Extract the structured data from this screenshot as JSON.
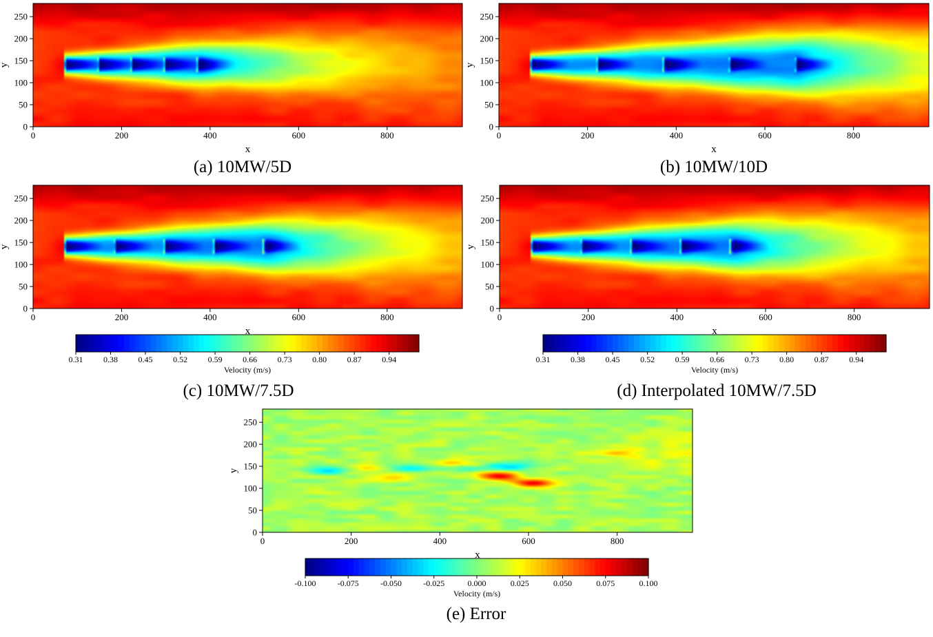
{
  "figure": {
    "captions": {
      "a": "(a) 10MW/5D",
      "b": "(b) 10MW/10D",
      "c": "(c) 10MW/7.5D",
      "d": "(d) Interpolated 10MW/7.5D",
      "e": "(e) Error"
    }
  },
  "colors": {
    "jet": [
      "#00007f",
      "#0000ff",
      "#007fff",
      "#00ffff",
      "#7fff7f",
      "#ffff00",
      "#ff7f00",
      "#ff0000",
      "#7f0000"
    ]
  },
  "chart_data": [
    {
      "id": "a",
      "type": "heatmap",
      "title": "(a) 10MW/5D",
      "xlabel": "x",
      "ylabel": "y",
      "xlim": [
        0,
        970
      ],
      "ylim": [
        0,
        280
      ],
      "xticks": [
        0,
        200,
        400,
        600,
        800
      ],
      "yticks": [
        0,
        50,
        100,
        150,
        200,
        250
      ],
      "turbine_x": [
        70,
        145,
        220,
        295,
        370
      ],
      "rotor_y": 141,
      "rotor_diameter": 30,
      "colorbar": null
    },
    {
      "id": "b",
      "type": "heatmap",
      "title": "(b) 10MW/10D",
      "xlabel": "x",
      "ylabel": "y",
      "xlim": [
        0,
        970
      ],
      "ylim": [
        0,
        280
      ],
      "xticks": [
        0,
        200,
        400,
        600,
        800
      ],
      "yticks": [
        0,
        50,
        100,
        150,
        200,
        250
      ],
      "turbine_x": [
        70,
        220,
        370,
        518,
        667
      ],
      "rotor_y": 141,
      "rotor_diameter": 30,
      "colorbar": null
    },
    {
      "id": "c",
      "type": "heatmap",
      "title": "(c) 10MW/7.5D",
      "xlabel": "x",
      "ylabel": "y",
      "xlim": [
        0,
        970
      ],
      "ylim": [
        0,
        280
      ],
      "xticks": [
        0,
        200,
        400,
        600,
        800
      ],
      "yticks": [
        0,
        50,
        100,
        150,
        200,
        250
      ],
      "turbine_x": [
        70,
        182,
        295,
        407,
        520
      ],
      "rotor_y": 141,
      "rotor_diameter": 30,
      "colorbar": {
        "label": "Velocity (m/s)",
        "range": [
          0.31,
          1.0
        ],
        "ticks": [
          "0.31",
          "0.38",
          "0.45",
          "0.52",
          "0.59",
          "0.66",
          "0.73",
          "0.80",
          "0.87",
          "0.94"
        ]
      }
    },
    {
      "id": "d",
      "type": "heatmap",
      "title": "(d) Interpolated 10MW/7.5D",
      "xlabel": "x",
      "ylabel": "y",
      "xlim": [
        0,
        970
      ],
      "ylim": [
        0,
        280
      ],
      "xticks": [
        0,
        200,
        400,
        600,
        800
      ],
      "yticks": [
        0,
        50,
        100,
        150,
        200,
        250
      ],
      "turbine_x": [
        70,
        182,
        295,
        407,
        520
      ],
      "rotor_y": 141,
      "rotor_diameter": 30,
      "colorbar": {
        "label": "Velocity (m/s)",
        "range": [
          0.31,
          1.0
        ],
        "ticks": [
          "0.31",
          "0.38",
          "0.45",
          "0.52",
          "0.59",
          "0.66",
          "0.73",
          "0.80",
          "0.87",
          "0.94"
        ]
      }
    },
    {
      "id": "e",
      "type": "heatmap",
      "title": "(e) Error",
      "xlabel": "x",
      "ylabel": "y",
      "xlim": [
        0,
        970
      ],
      "ylim": [
        0,
        280
      ],
      "xticks": [
        0,
        200,
        400,
        600,
        800
      ],
      "yticks": [
        0,
        50,
        100,
        150,
        200,
        250
      ],
      "error_features": [
        {
          "x": 145,
          "y": 140,
          "value": -0.035
        },
        {
          "x": 230,
          "y": 150,
          "value": 0.022
        },
        {
          "x": 330,
          "y": 145,
          "value": -0.03
        },
        {
          "x": 430,
          "y": 158,
          "value": 0.035
        },
        {
          "x": 460,
          "y": 145,
          "value": -0.028
        },
        {
          "x": 530,
          "y": 127,
          "value": 0.075
        },
        {
          "x": 560,
          "y": 150,
          "value": -0.04
        },
        {
          "x": 610,
          "y": 112,
          "value": 0.07
        },
        {
          "x": 800,
          "y": 180,
          "value": 0.018
        },
        {
          "x": 300,
          "y": 125,
          "value": 0.025
        }
      ],
      "colorbar": {
        "label": "Velocity (m/s)",
        "range": [
          -0.1,
          0.1
        ],
        "ticks": [
          "-0.100",
          "-0.075",
          "-0.050",
          "-0.025",
          "0.000",
          "0.025",
          "0.050",
          "0.075",
          "0.100"
        ]
      }
    }
  ]
}
